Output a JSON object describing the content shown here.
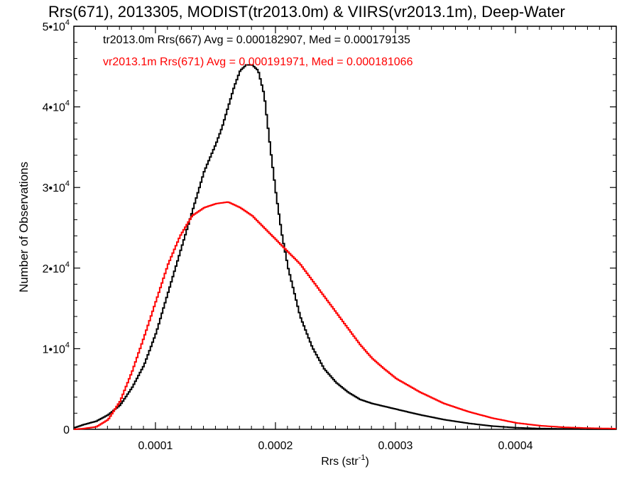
{
  "chart_data": {
    "type": "line",
    "title": "Rrs(671), 2013305, MODIST(tr2013.0m) & VIIRS(vr2013.1m), Deep-Water",
    "xlabel": "Rrs (str",
    "xlabel_exponent": "-1",
    "xlabel_suffix": ")",
    "ylabel": "Number of Observations",
    "xlim": [
      3.2e-05,
      0.000484
    ],
    "ylim": [
      0,
      50000
    ],
    "x_ticks": [
      {
        "value": 0.0001,
        "label": "0.0001"
      },
      {
        "value": 0.0002,
        "label": "0.0002"
      },
      {
        "value": 0.0003,
        "label": "0.0003"
      },
      {
        "value": 0.0004,
        "label": "0.0004"
      }
    ],
    "y_ticks": [
      {
        "value": 0,
        "label": "0",
        "exp": ""
      },
      {
        "value": 10000,
        "label": "1•10",
        "exp": "4"
      },
      {
        "value": 20000,
        "label": "2•10",
        "exp": "4"
      },
      {
        "value": 30000,
        "label": "3•10",
        "exp": "4"
      },
      {
        "value": 40000,
        "label": "4•10",
        "exp": "4"
      },
      {
        "value": 50000,
        "label": "5•10",
        "exp": "4"
      }
    ],
    "grid": false,
    "annotations": [
      {
        "text": "tr2013.0m Rrs(667) Avg = 0.000182907, Med = 0.000179135",
        "color": "#000000"
      },
      {
        "text": "vr2013.1m Rrs(671) Avg = 0.000191971, Med = 0.000181066",
        "color": "#ff0000"
      }
    ],
    "series": [
      {
        "color": "#000000",
        "x": [
          3.2e-05,
          4e-05,
          5e-05,
          6e-05,
          7e-05,
          8e-05,
          9e-05,
          0.0001,
          0.00011,
          0.00012,
          0.00013,
          0.00014,
          0.00015,
          0.000155,
          0.00016,
          0.000165,
          0.00017,
          0.000175,
          0.00018,
          0.000185,
          0.00019,
          0.000195,
          0.0002,
          0.000205,
          0.00021,
          0.00022,
          0.00023,
          0.00024,
          0.00025,
          0.00026,
          0.00027,
          0.00028,
          0.0003,
          0.00032,
          0.00034,
          0.00036,
          0.00038,
          0.0004,
          0.00042,
          0.00044,
          0.00046,
          0.000484
        ],
        "y": [
          200,
          600,
          1000,
          1800,
          3000,
          5200,
          8000,
          12000,
          17000,
          22000,
          27000,
          32000,
          35500,
          37500,
          40000,
          42500,
          44500,
          45200,
          45200,
          44500,
          41500,
          35000,
          29000,
          24000,
          20000,
          14000,
          10200,
          7500,
          5800,
          4600,
          3700,
          3200,
          2500,
          1800,
          1200,
          750,
          400,
          200,
          100,
          60,
          30,
          15
        ]
      },
      {
        "color": "#ff0000",
        "x": [
          3.2e-05,
          4e-05,
          5e-05,
          6e-05,
          7e-05,
          8e-05,
          9e-05,
          0.0001,
          0.00011,
          0.00012,
          0.00013,
          0.00014,
          0.00015,
          0.00016,
          0.00017,
          0.00018,
          0.00019,
          0.0002,
          0.00021,
          0.00022,
          0.00023,
          0.00024,
          0.00025,
          0.00026,
          0.00027,
          0.00028,
          0.00029,
          0.0003,
          0.00032,
          0.00034,
          0.00036,
          0.00038,
          0.0004,
          0.00042,
          0.00044,
          0.00046,
          0.000484
        ],
        "y": [
          0,
          100,
          300,
          1200,
          3500,
          7200,
          11500,
          16000,
          20500,
          24000,
          26500,
          27500,
          28000,
          28200,
          27500,
          26500,
          25000,
          23500,
          22000,
          20500,
          18500,
          16500,
          14500,
          12500,
          10500,
          8800,
          7500,
          6300,
          4600,
          3200,
          2200,
          1400,
          800,
          450,
          250,
          150,
          80
        ]
      }
    ]
  }
}
